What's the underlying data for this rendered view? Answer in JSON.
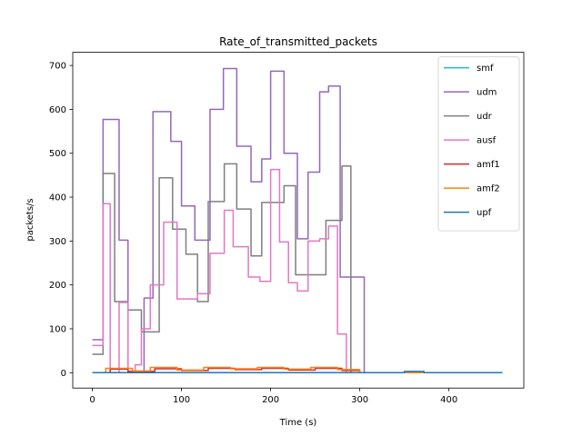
{
  "chart_data": {
    "type": "line",
    "title": "Rate_of_transmitted_packets",
    "xlabel": "Time (s)",
    "ylabel": "packets/s",
    "xlim": [
      -22,
      484
    ],
    "ylim": [
      -35,
      730
    ],
    "xticks": [
      0,
      100,
      200,
      300,
      400
    ],
    "yticks": [
      0,
      100,
      200,
      300,
      400,
      500,
      600,
      700
    ],
    "grid": false,
    "legend_position": "upper right",
    "step": true,
    "series": [
      {
        "name": "smf",
        "color": "#17becf",
        "x": [
          0,
          460
        ],
        "y": [
          0,
          0
        ]
      },
      {
        "name": "udm",
        "color": "#9467bd",
        "x": [
          0,
          12,
          12,
          30,
          30,
          40,
          40,
          50,
          50,
          58,
          58,
          68,
          68,
          88,
          88,
          100,
          100,
          115,
          115,
          132,
          132,
          147,
          147,
          162,
          162,
          178,
          178,
          190,
          190,
          200,
          200,
          215,
          215,
          230,
          230,
          242,
          242,
          255,
          255,
          265,
          265,
          278,
          278,
          295,
          295,
          305,
          305,
          460
        ],
        "y": [
          75,
          75,
          577,
          577,
          302,
          302,
          0,
          0,
          0,
          0,
          170,
          170,
          595,
          595,
          527,
          527,
          380,
          380,
          302,
          302,
          600,
          600,
          693,
          693,
          516,
          516,
          435,
          435,
          487,
          487,
          687,
          687,
          500,
          500,
          305,
          305,
          457,
          457,
          640,
          640,
          653,
          653,
          218,
          218,
          218,
          218,
          0,
          0
        ]
      },
      {
        "name": "udr",
        "color": "#7f7f7f",
        "x": [
          0,
          12,
          12,
          25,
          25,
          40,
          40,
          55,
          55,
          75,
          75,
          90,
          90,
          105,
          105,
          118,
          118,
          130,
          130,
          148,
          148,
          162,
          162,
          178,
          178,
          190,
          190,
          208,
          208,
          215,
          215,
          228,
          228,
          245,
          245,
          262,
          262,
          280,
          280,
          290,
          290,
          305,
          305,
          460
        ],
        "y": [
          42,
          42,
          454,
          454,
          162,
          162,
          143,
          143,
          93,
          93,
          444,
          444,
          327,
          327,
          270,
          270,
          162,
          162,
          390,
          390,
          476,
          476,
          373,
          373,
          266,
          266,
          388,
          388,
          388,
          388,
          426,
          426,
          223,
          223,
          223,
          223,
          347,
          347,
          471,
          471,
          0,
          0,
          0,
          0
        ]
      },
      {
        "name": "ausf",
        "color": "#e377c2",
        "x": [
          0,
          12,
          12,
          20,
          20,
          30,
          30,
          40,
          40,
          48,
          48,
          55,
          55,
          65,
          65,
          80,
          80,
          95,
          95,
          110,
          110,
          118,
          118,
          132,
          132,
          148,
          148,
          158,
          158,
          175,
          175,
          188,
          188,
          200,
          200,
          210,
          210,
          220,
          220,
          230,
          230,
          242,
          242,
          255,
          255,
          265,
          265,
          275,
          275,
          285,
          285,
          295,
          295,
          460
        ],
        "y": [
          62,
          62,
          385,
          385,
          0,
          0,
          160,
          160,
          0,
          0,
          18,
          18,
          100,
          100,
          200,
          200,
          343,
          343,
          168,
          168,
          168,
          168,
          180,
          180,
          272,
          272,
          370,
          370,
          287,
          287,
          218,
          218,
          208,
          208,
          463,
          463,
          298,
          298,
          205,
          205,
          186,
          186,
          300,
          300,
          305,
          305,
          334,
          334,
          88,
          88,
          0,
          0,
          0,
          0
        ]
      },
      {
        "name": "amf1",
        "color": "#d62728",
        "x": [
          0,
          20,
          20,
          40,
          40,
          70,
          70,
          100,
          100,
          130,
          130,
          160,
          160,
          190,
          190,
          220,
          220,
          250,
          250,
          280,
          280,
          300,
          300,
          460
        ],
        "y": [
          0,
          0,
          8,
          8,
          3,
          3,
          9,
          9,
          5,
          5,
          10,
          10,
          7,
          7,
          10,
          10,
          6,
          6,
          10,
          10,
          5,
          5,
          0,
          0
        ]
      },
      {
        "name": "amf2",
        "color": "#ff7f0e",
        "x": [
          0,
          15,
          15,
          45,
          45,
          65,
          65,
          95,
          95,
          125,
          125,
          155,
          155,
          185,
          185,
          215,
          215,
          245,
          245,
          275,
          275,
          300,
          300,
          460
        ],
        "y": [
          0,
          0,
          10,
          10,
          4,
          4,
          12,
          12,
          6,
          6,
          12,
          12,
          9,
          9,
          12,
          12,
          8,
          8,
          12,
          12,
          7,
          7,
          0,
          0
        ]
      },
      {
        "name": "upf",
        "color": "#1f77b4",
        "x": [
          0,
          350,
          350,
          372,
          372,
          460
        ],
        "y": [
          0,
          0,
          3,
          3,
          0,
          0
        ]
      }
    ]
  }
}
